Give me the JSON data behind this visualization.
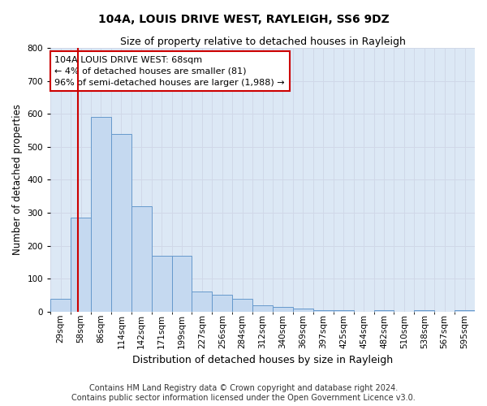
{
  "title": "104A, LOUIS DRIVE WEST, RAYLEIGH, SS6 9DZ",
  "subtitle": "Size of property relative to detached houses in Rayleigh",
  "xlabel": "Distribution of detached houses by size in Rayleigh",
  "ylabel": "Number of detached properties",
  "bin_labels": [
    "29sqm",
    "58sqm",
    "86sqm",
    "114sqm",
    "142sqm",
    "171sqm",
    "199sqm",
    "227sqm",
    "256sqm",
    "284sqm",
    "312sqm",
    "340sqm",
    "369sqm",
    "397sqm",
    "425sqm",
    "454sqm",
    "482sqm",
    "510sqm",
    "538sqm",
    "567sqm",
    "595sqm"
  ],
  "bar_heights": [
    40,
    285,
    590,
    540,
    320,
    170,
    170,
    60,
    50,
    40,
    20,
    15,
    10,
    5,
    5,
    0,
    5,
    0,
    5,
    0,
    5
  ],
  "bar_color": "#c5d9f0",
  "bar_edge_color": "#6699cc",
  "grid_color": "#d0d8e8",
  "bg_color": "#dce8f5",
  "property_line_color": "#cc0000",
  "annotation_text": "104A LOUIS DRIVE WEST: 68sqm\n← 4% of detached houses are smaller (81)\n96% of semi-detached houses are larger (1,988) →",
  "annotation_box_color": "#cc0000",
  "ylim": [
    0,
    800
  ],
  "yticks": [
    0,
    100,
    200,
    300,
    400,
    500,
    600,
    700,
    800
  ],
  "footnote": "Contains HM Land Registry data © Crown copyright and database right 2024.\nContains public sector information licensed under the Open Government Licence v3.0.",
  "title_fontsize": 10,
  "subtitle_fontsize": 9,
  "xlabel_fontsize": 9,
  "ylabel_fontsize": 8.5,
  "annotation_fontsize": 8,
  "footnote_fontsize": 7,
  "tick_fontsize": 7.5
}
